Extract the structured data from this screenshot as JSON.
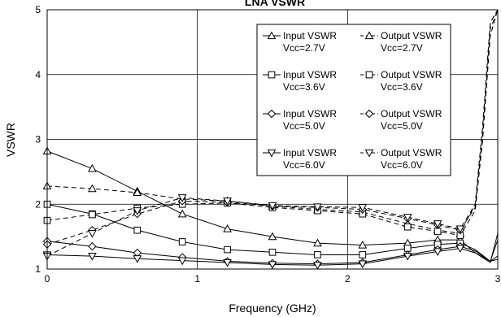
{
  "chart_data": {
    "type": "line",
    "title": "LNA VSWR",
    "xlabel": "Frequency (GHz)",
    "ylabel": "VSWR",
    "xlim": [
      0,
      3
    ],
    "ylim": [
      1,
      5
    ],
    "xticks": [
      "0",
      "1",
      "2",
      "3"
    ],
    "yticks": [
      "1",
      "2",
      "3",
      "4",
      "5"
    ],
    "grid": true,
    "legend_position": "top-right",
    "series": [
      {
        "name": "Input VSWR Vcc=2.7V",
        "marker": "triangle-up",
        "dash": "solid",
        "x": [
          0,
          0.3,
          0.6,
          0.9,
          1.2,
          1.5,
          1.8,
          2.1,
          2.4,
          2.6,
          2.75,
          2.85,
          2.95,
          3.0
        ],
        "y": [
          2.82,
          2.55,
          2.2,
          1.85,
          1.62,
          1.5,
          1.4,
          1.37,
          1.4,
          1.45,
          1.45,
          1.25,
          1.12,
          1.2
        ]
      },
      {
        "name": "Output VSWR Vcc=2.7V",
        "marker": "triangle-up",
        "dash": "dashed",
        "x": [
          0,
          0.3,
          0.6,
          0.9,
          1.2,
          1.5,
          1.8,
          2.1,
          2.4,
          2.6,
          2.75,
          2.85,
          2.9,
          2.95,
          3.0
        ],
        "y": [
          2.28,
          2.24,
          2.18,
          2.08,
          2.05,
          1.97,
          1.92,
          1.88,
          1.7,
          1.6,
          1.55,
          2.0,
          3.2,
          4.8,
          5.0
        ]
      },
      {
        "name": "Input VSWR Vcc=3.6V",
        "marker": "square",
        "dash": "solid",
        "x": [
          0,
          0.3,
          0.6,
          0.9,
          1.2,
          1.5,
          1.8,
          2.1,
          2.4,
          2.6,
          2.75,
          2.85,
          2.95,
          3.0
        ],
        "y": [
          2.0,
          1.85,
          1.6,
          1.42,
          1.3,
          1.26,
          1.22,
          1.22,
          1.32,
          1.38,
          1.4,
          1.3,
          1.12,
          1.15
        ]
      },
      {
        "name": "Output VSWR Vcc=3.6V",
        "marker": "square",
        "dash": "dashed",
        "x": [
          0,
          0.3,
          0.6,
          0.9,
          1.2,
          1.5,
          1.8,
          2.1,
          2.4,
          2.6,
          2.75,
          2.85,
          2.9,
          2.95,
          3.0
        ],
        "y": [
          1.75,
          1.84,
          1.94,
          2.0,
          2.02,
          1.95,
          1.9,
          1.85,
          1.65,
          1.58,
          1.52,
          1.9,
          3.0,
          4.6,
          5.0
        ]
      },
      {
        "name": "Input VSWR Vcc=5.0V",
        "marker": "diamond",
        "dash": "solid",
        "x": [
          0,
          0.3,
          0.6,
          0.9,
          1.2,
          1.5,
          1.8,
          2.1,
          2.4,
          2.6,
          2.75,
          2.85,
          2.95,
          3.0
        ],
        "y": [
          1.43,
          1.35,
          1.25,
          1.18,
          1.12,
          1.09,
          1.08,
          1.1,
          1.22,
          1.3,
          1.35,
          1.28,
          1.12,
          1.45
        ]
      },
      {
        "name": "Output VSWR Vcc=5.0V",
        "marker": "diamond",
        "dash": "dashed",
        "x": [
          0,
          0.3,
          0.6,
          0.9,
          1.2,
          1.5,
          1.8,
          2.1,
          2.4,
          2.6,
          2.75,
          2.85,
          2.9,
          2.95,
          3.0
        ],
        "y": [
          1.38,
          1.6,
          1.85,
          2.05,
          2.03,
          1.97,
          1.95,
          1.92,
          1.78,
          1.68,
          1.6,
          1.95,
          3.1,
          4.7,
          5.0
        ]
      },
      {
        "name": "Input VSWR Vcc=6.0V",
        "marker": "triangle-down",
        "dash": "solid",
        "x": [
          0,
          0.3,
          0.6,
          0.9,
          1.2,
          1.5,
          1.8,
          2.1,
          2.4,
          2.6,
          2.75,
          2.85,
          2.95,
          3.0
        ],
        "y": [
          1.22,
          1.2,
          1.16,
          1.13,
          1.1,
          1.07,
          1.06,
          1.08,
          1.2,
          1.27,
          1.32,
          1.25,
          1.1,
          1.55
        ]
      },
      {
        "name": "Output VSWR Vcc=6.0V",
        "marker": "triangle-down",
        "dash": "dashed",
        "x": [
          0,
          0.3,
          0.6,
          0.9,
          1.2,
          1.5,
          1.8,
          2.1,
          2.4,
          2.6,
          2.75,
          2.85,
          2.9,
          2.95,
          3.0
        ],
        "y": [
          1.2,
          1.55,
          1.9,
          2.1,
          2.05,
          1.98,
          1.96,
          1.95,
          1.8,
          1.7,
          1.62,
          2.0,
          3.2,
          4.8,
          5.0
        ]
      }
    ],
    "legend_entries": [
      {
        "line1": "Input VSWR",
        "line2": "Vcc=2.7V",
        "marker": "triangle-up",
        "dash": "solid"
      },
      {
        "line1": "Output VSWR",
        "line2": "Vcc=2.7V",
        "marker": "triangle-up",
        "dash": "dashed"
      },
      {
        "line1": "Input VSWR",
        "line2": "Vcc=3.6V",
        "marker": "square",
        "dash": "solid"
      },
      {
        "line1": "Output VSWR",
        "line2": "Vcc=3.6V",
        "marker": "square",
        "dash": "dashed"
      },
      {
        "line1": "Input VSWR",
        "line2": "Vcc=5.0V",
        "marker": "diamond",
        "dash": "solid"
      },
      {
        "line1": "Output VSWR",
        "line2": "Vcc=5.0V",
        "marker": "diamond",
        "dash": "dashed"
      },
      {
        "line1": "Input VSWR",
        "line2": "Vcc=6.0V",
        "marker": "triangle-down",
        "dash": "solid"
      },
      {
        "line1": "Output VSWR",
        "line2": "Vcc=6.0V",
        "marker": "triangle-down",
        "dash": "dashed"
      }
    ]
  }
}
